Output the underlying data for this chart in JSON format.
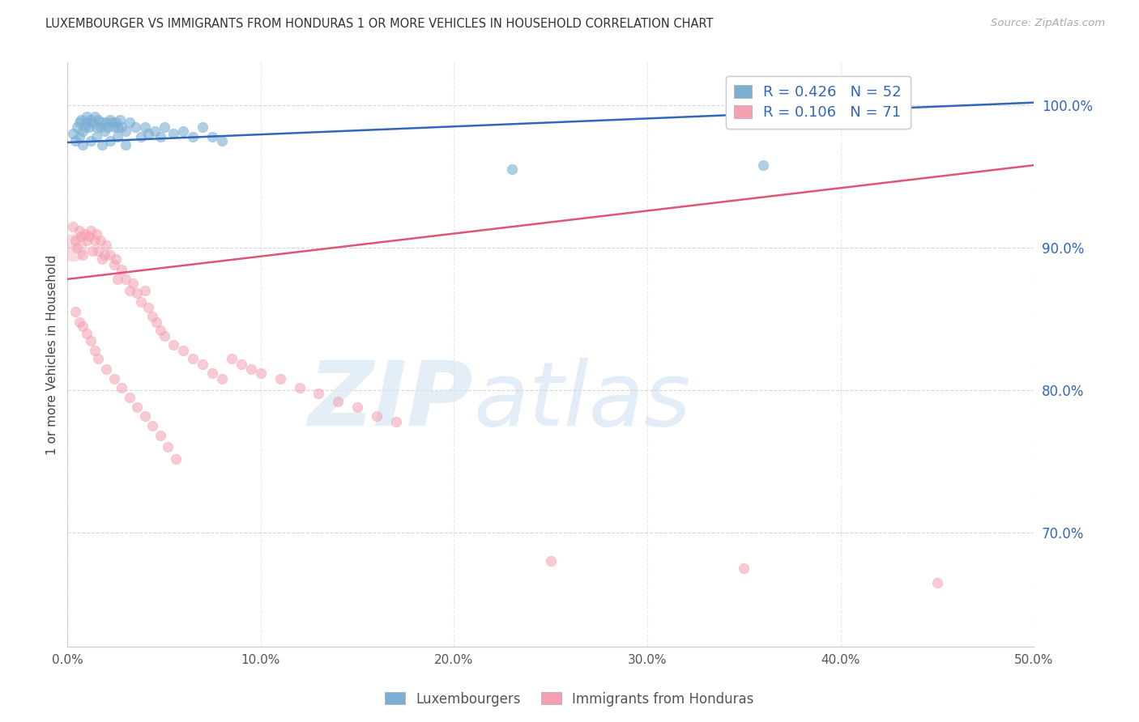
{
  "title": "LUXEMBOURGER VS IMMIGRANTS FROM HONDURAS 1 OR MORE VEHICLES IN HOUSEHOLD CORRELATION CHART",
  "source": "Source: ZipAtlas.com",
  "ylabel": "1 or more Vehicles in Household",
  "ytick_labels": [
    "100.0%",
    "90.0%",
    "80.0%",
    "70.0%"
  ],
  "ytick_values": [
    1.0,
    0.9,
    0.8,
    0.7
  ],
  "xlim": [
    0.0,
    0.5
  ],
  "ylim": [
    0.62,
    1.03
  ],
  "blue_R": 0.426,
  "blue_N": 52,
  "pink_R": 0.106,
  "pink_N": 71,
  "blue_color": "#7BAFD4",
  "pink_color": "#F4A0B0",
  "blue_line_color": "#3366BB",
  "pink_line_color": "#E05575",
  "legend_label_blue": "Luxembourgers",
  "legend_label_pink": "Immigrants from Honduras",
  "background_color": "#FFFFFF",
  "blue_line_x0": 0.0,
  "blue_line_y0": 0.974,
  "blue_line_x1": 0.5,
  "blue_line_y1": 1.002,
  "pink_line_x0": 0.0,
  "pink_line_y0": 0.878,
  "pink_line_x1": 0.5,
  "pink_line_y1": 0.958,
  "blue_x": [
    0.003,
    0.005,
    0.006,
    0.007,
    0.008,
    0.009,
    0.01,
    0.01,
    0.011,
    0.012,
    0.013,
    0.014,
    0.015,
    0.016,
    0.017,
    0.018,
    0.019,
    0.02,
    0.021,
    0.022,
    0.023,
    0.024,
    0.025,
    0.026,
    0.027,
    0.028,
    0.03,
    0.032,
    0.035,
    0.038,
    0.04,
    0.042,
    0.045,
    0.048,
    0.05,
    0.055,
    0.06,
    0.065,
    0.07,
    0.075,
    0.08,
    0.004,
    0.006,
    0.008,
    0.012,
    0.015,
    0.018,
    0.022,
    0.026,
    0.03,
    0.23,
    0.36
  ],
  "blue_y": [
    0.98,
    0.985,
    0.988,
    0.99,
    0.982,
    0.985,
    0.988,
    0.992,
    0.985,
    0.99,
    0.988,
    0.992,
    0.985,
    0.99,
    0.985,
    0.988,
    0.982,
    0.988,
    0.985,
    0.99,
    0.988,
    0.985,
    0.988,
    0.985,
    0.99,
    0.985,
    0.982,
    0.988,
    0.985,
    0.978,
    0.985,
    0.98,
    0.982,
    0.978,
    0.985,
    0.98,
    0.982,
    0.978,
    0.985,
    0.978,
    0.975,
    0.975,
    0.978,
    0.972,
    0.975,
    0.978,
    0.972,
    0.975,
    0.978,
    0.972,
    0.955,
    0.958
  ],
  "pink_x": [
    0.003,
    0.004,
    0.005,
    0.006,
    0.007,
    0.008,
    0.009,
    0.01,
    0.011,
    0.012,
    0.013,
    0.014,
    0.015,
    0.016,
    0.017,
    0.018,
    0.019,
    0.02,
    0.022,
    0.024,
    0.025,
    0.026,
    0.028,
    0.03,
    0.032,
    0.034,
    0.036,
    0.038,
    0.04,
    0.042,
    0.044,
    0.046,
    0.048,
    0.05,
    0.055,
    0.06,
    0.065,
    0.07,
    0.075,
    0.08,
    0.085,
    0.09,
    0.095,
    0.1,
    0.11,
    0.12,
    0.13,
    0.14,
    0.15,
    0.16,
    0.17,
    0.004,
    0.006,
    0.008,
    0.01,
    0.012,
    0.014,
    0.016,
    0.02,
    0.024,
    0.028,
    0.032,
    0.036,
    0.04,
    0.044,
    0.048,
    0.052,
    0.056,
    0.25,
    0.35,
    0.45
  ],
  "pink_y": [
    0.915,
    0.905,
    0.9,
    0.912,
    0.908,
    0.895,
    0.91,
    0.905,
    0.908,
    0.912,
    0.898,
    0.905,
    0.91,
    0.898,
    0.905,
    0.892,
    0.895,
    0.902,
    0.895,
    0.888,
    0.892,
    0.878,
    0.885,
    0.878,
    0.87,
    0.875,
    0.868,
    0.862,
    0.87,
    0.858,
    0.852,
    0.848,
    0.842,
    0.838,
    0.832,
    0.828,
    0.822,
    0.818,
    0.812,
    0.808,
    0.822,
    0.818,
    0.815,
    0.812,
    0.808,
    0.802,
    0.798,
    0.792,
    0.788,
    0.782,
    0.778,
    0.855,
    0.848,
    0.845,
    0.84,
    0.835,
    0.828,
    0.822,
    0.815,
    0.808,
    0.802,
    0.795,
    0.788,
    0.782,
    0.775,
    0.768,
    0.76,
    0.752,
    0.68,
    0.675,
    0.665
  ],
  "pink_large_x": [
    0.003
  ],
  "pink_large_y": [
    0.9
  ],
  "blue_marker_size": 80,
  "pink_marker_size": 80
}
